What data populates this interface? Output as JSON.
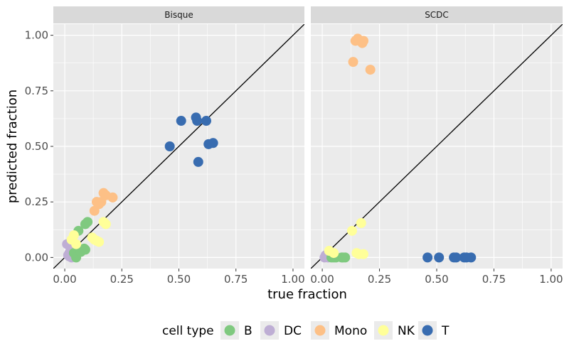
{
  "chart_data": {
    "type": "scatter",
    "xlabel": "true fraction",
    "ylabel": "predicted fraction",
    "xlim": [
      -0.05,
      1.05
    ],
    "ylim": [
      -0.05,
      1.05
    ],
    "ticks": [
      0,
      0.25,
      0.5,
      0.75,
      1
    ],
    "tick_labels": [
      "0.00",
      "0.25",
      "0.50",
      "0.75",
      "1.00"
    ],
    "reference_line": "y = x",
    "legend": {
      "title": "cell type",
      "placement": "bottom",
      "entries": [
        {
          "name": "B",
          "color": "#7fc97f"
        },
        {
          "name": "DC",
          "color": "#beaed4"
        },
        {
          "name": "Mono",
          "color": "#fdc086"
        },
        {
          "name": "NK",
          "color": "#ffff99"
        },
        {
          "name": "T",
          "color": "#386cb0"
        }
      ]
    },
    "panels": [
      {
        "title": "Bisque",
        "series": [
          {
            "name": "DC",
            "x": [
              0.01,
              0.02,
              0.03,
              0.015,
              0.025,
              0.035,
              0.02
            ],
            "y": [
              0.06,
              0.02,
              0.0,
              0.01,
              0.03,
              0.015,
              0.005
            ]
          },
          {
            "name": "B",
            "x": [
              0.05,
              0.06,
              0.09,
              0.1,
              0.085,
              0.04,
              0.07,
              0.09
            ],
            "y": [
              0.0,
              0.12,
              0.15,
              0.16,
              0.04,
              0.02,
              0.025,
              0.035
            ]
          },
          {
            "name": "NK",
            "x": [
              0.03,
              0.04,
              0.05,
              0.12,
              0.13,
              0.14,
              0.15,
              0.17,
              0.18
            ],
            "y": [
              0.08,
              0.1,
              0.06,
              0.09,
              0.08,
              0.075,
              0.07,
              0.16,
              0.15
            ]
          },
          {
            "name": "Mono",
            "x": [
              0.13,
              0.14,
              0.15,
              0.16,
              0.17,
              0.18,
              0.21
            ],
            "y": [
              0.21,
              0.25,
              0.24,
              0.25,
              0.29,
              0.28,
              0.27
            ]
          },
          {
            "name": "T",
            "x": [
              0.46,
              0.51,
              0.575,
              0.58,
              0.585,
              0.62,
              0.63,
              0.65
            ],
            "y": [
              0.5,
              0.615,
              0.63,
              0.615,
              0.43,
              0.615,
              0.51,
              0.515
            ]
          }
        ]
      },
      {
        "title": "SCDC",
        "series": [
          {
            "name": "DC",
            "x": [
              0.01,
              0.015,
              0.02,
              0.025
            ],
            "y": [
              0.0,
              0.01,
              0.005,
              0.0
            ]
          },
          {
            "name": "B",
            "x": [
              0.04,
              0.05,
              0.06,
              0.085,
              0.09,
              0.1
            ],
            "y": [
              0.0,
              0.0,
              0.0,
              0.0,
              0.0,
              0.0
            ]
          },
          {
            "name": "NK",
            "x": [
              0.03,
              0.05,
              0.13,
              0.15,
              0.16,
              0.17,
              0.18
            ],
            "y": [
              0.03,
              0.02,
              0.12,
              0.02,
              0.015,
              0.155,
              0.015
            ]
          },
          {
            "name": "Mono",
            "x": [
              0.135,
              0.145,
              0.155,
              0.165,
              0.175,
              0.18,
              0.21
            ],
            "y": [
              0.88,
              0.975,
              0.985,
              0.975,
              0.965,
              0.975,
              0.845
            ]
          },
          {
            "name": "T",
            "x": [
              0.46,
              0.51,
              0.575,
              0.585,
              0.62,
              0.63,
              0.65
            ],
            "y": [
              0.0,
              0.0,
              0.0,
              0.0,
              0.0,
              0.0,
              0.0
            ]
          }
        ]
      }
    ]
  }
}
